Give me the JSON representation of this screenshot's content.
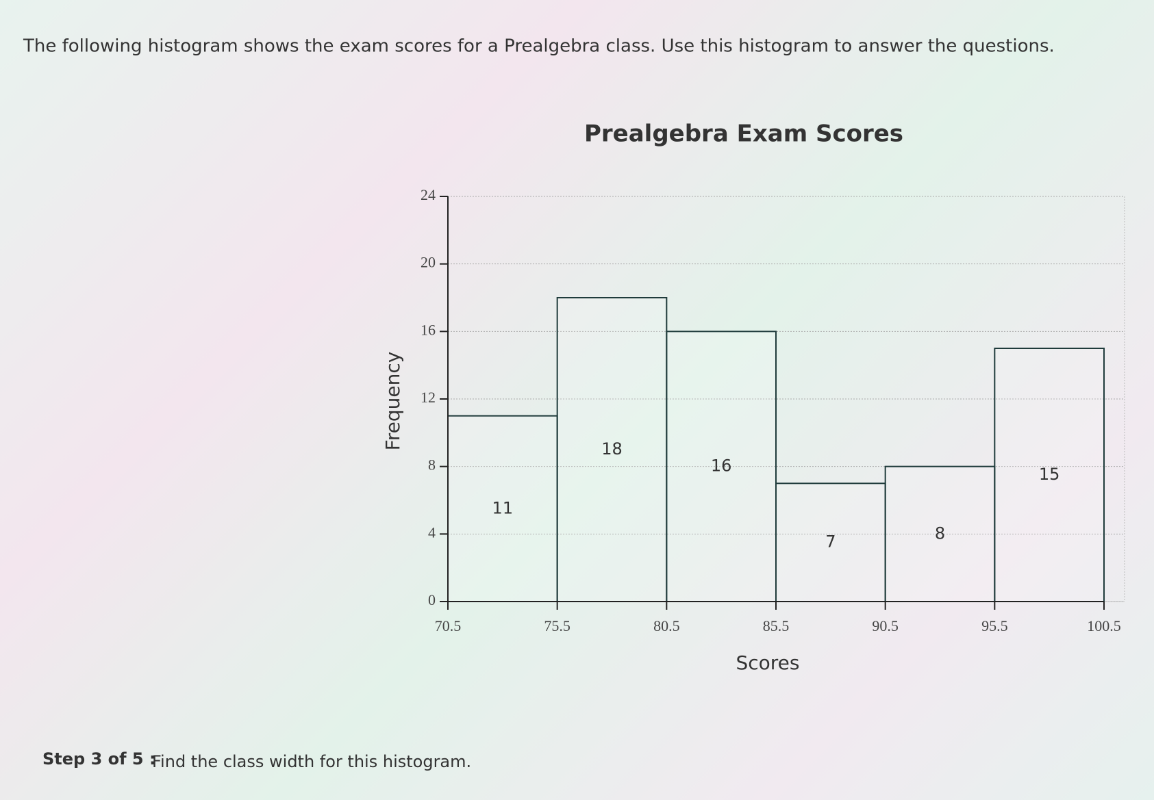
{
  "intro": "The following histogram shows the exam scores for a Prealgebra class. Use this histogram to answer the questions.",
  "step": {
    "label": "Step 3 of 5 :",
    "text": "Find the class width for this histogram."
  },
  "chart_data": {
    "type": "histogram",
    "title": "Prealgebra Exam Scores",
    "x_label": "Scores",
    "y_label": "Frequency",
    "bins": [
      70.5,
      75.5,
      80.5,
      85.5,
      90.5,
      95.5,
      100.5
    ],
    "values": [
      11,
      18,
      16,
      7,
      8,
      15
    ],
    "color": "#1f3b3b",
    "xlim": [
      70.5,
      100.5
    ],
    "xticks": [
      70.5,
      75.5,
      80.5,
      85.5,
      90.5,
      95.5,
      100.5
    ],
    "ylim": [
      0,
      24
    ],
    "yticks": [
      0,
      4,
      8,
      12,
      16,
      20,
      24
    ],
    "grid": true
  }
}
